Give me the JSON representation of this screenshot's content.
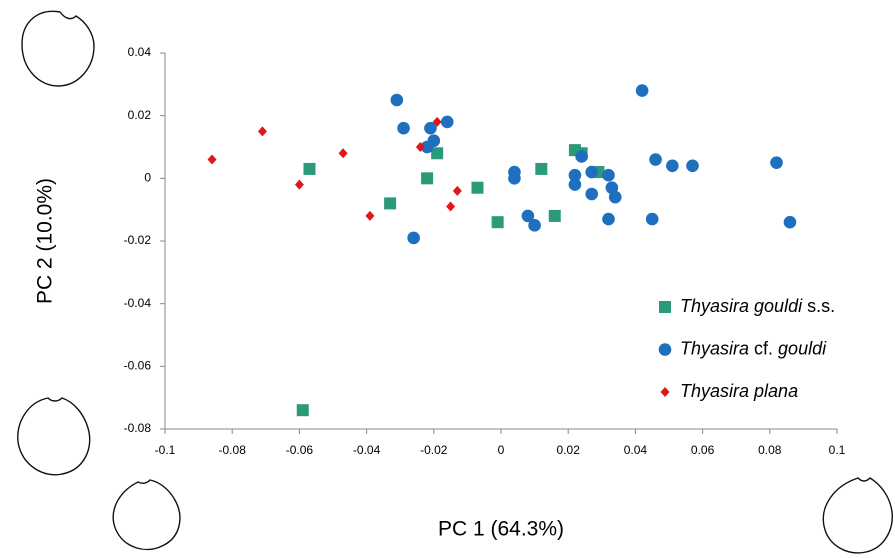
{
  "chart_data": {
    "type": "scatter",
    "x_label": "PC 1 (64.3%)",
    "y_label": "PC 2 (10.0%)",
    "xlim": [
      -0.1,
      0.1
    ],
    "xticks": [
      -0.1,
      -0.08,
      -0.06,
      -0.04,
      -0.02,
      0,
      0.02,
      0.04,
      0.06,
      0.08,
      0.1
    ],
    "ylim": [
      -0.08,
      0.04
    ],
    "yticks": [
      -0.08,
      -0.06,
      -0.04,
      -0.02,
      0,
      0.02,
      0.04
    ],
    "grid": false,
    "legend": "lower right",
    "series": [
      {
        "name": "Thyasira gouldi s.s.",
        "color": "#2a9a7a",
        "marker": "square",
        "x": [
          -0.057,
          -0.019,
          -0.022,
          -0.033,
          -0.007,
          -0.001,
          0.012,
          0.016,
          0.022,
          0.024,
          0.029,
          -0.059
        ],
        "values": [
          0.003,
          0.008,
          0,
          -0.008,
          -0.003,
          -0.014,
          0.003,
          -0.012,
          0.009,
          0.008,
          0.002,
          -0.074
        ]
      },
      {
        "name": "Thyasira cf. gouldi",
        "color": "#1f6fbf",
        "marker": "circle",
        "x": [
          -0.031,
          -0.029,
          -0.016,
          -0.021,
          -0.02,
          -0.022,
          -0.026,
          0.004,
          0.004,
          0.008,
          0.01,
          0.022,
          0.022,
          0.024,
          0.027,
          0.027,
          0.032,
          0.033,
          0.034,
          0.032,
          0.042,
          0.046,
          0.045,
          0.051,
          0.057,
          0.082,
          0.086
        ],
        "values": [
          0.025,
          0.016,
          0.018,
          0.016,
          0.012,
          0.01,
          -0.019,
          0.002,
          0,
          -0.012,
          -0.015,
          0.001,
          -0.002,
          0.007,
          0.002,
          -0.005,
          0.001,
          -0.003,
          -0.006,
          -0.013,
          0.028,
          0.006,
          -0.013,
          0.004,
          0.004,
          0.005,
          -0.014
        ]
      },
      {
        "name": "Thyasira plana",
        "color": "#e0161b",
        "marker": "diamond",
        "x": [
          -0.086,
          -0.071,
          -0.06,
          -0.047,
          -0.039,
          -0.024,
          -0.019,
          -0.013,
          -0.015
        ],
        "values": [
          0.006,
          0.015,
          -0.002,
          0.008,
          -0.012,
          0.01,
          0.018,
          -0.004,
          -0.009
        ]
      }
    ]
  }
}
